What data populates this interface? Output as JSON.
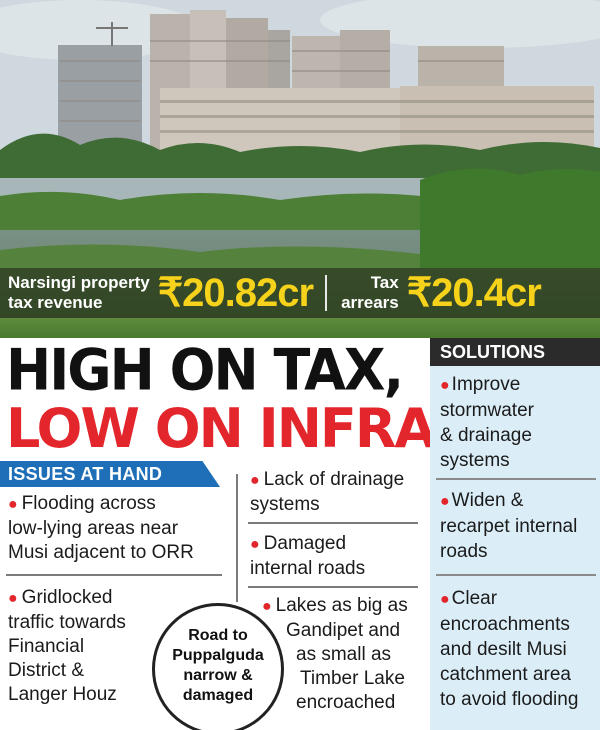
{
  "stats": {
    "revenue_label_line1": "Narsingi property",
    "revenue_label_line2": "tax revenue",
    "revenue_value": "₹20.82cr",
    "arrears_label_line1": "Tax",
    "arrears_label_line2": "arrears",
    "arrears_value": "₹20.4cr",
    "value_color": "#f6d21a"
  },
  "headline": {
    "line1": "HIGH ON TAX,",
    "line2": "LOW ON INFRA",
    "line1_color": "#111111",
    "line2_color": "#e3262b"
  },
  "issues": {
    "header": "ISSUES AT HAND",
    "header_color": "#1e6fb7",
    "items": [
      {
        "lines": [
          "Flooding across",
          "low-lying areas near",
          "Musi adjacent to ORR"
        ]
      },
      {
        "lines": [
          "Gridlocked",
          "traffic towards",
          "Financial",
          "District &",
          "Langer Houz"
        ]
      },
      {
        "lines": [
          "Lack of drainage",
          "systems"
        ]
      },
      {
        "lines": [
          "Damaged",
          "internal roads"
        ]
      },
      {
        "lines": [
          "Lakes as big as",
          "Gandipet and",
          "as small as",
          "Timber Lake",
          "encroached"
        ]
      }
    ],
    "callout": {
      "lines": [
        "Road to",
        "Puppalguda",
        "narrow &",
        "damaged"
      ]
    }
  },
  "solutions": {
    "header": "SOLUTIONS",
    "panel_color": "#dbeef8",
    "items": [
      {
        "lines": [
          "Improve",
          "stormwater",
          "& drainage",
          "systems"
        ]
      },
      {
        "lines": [
          "Widen &",
          "recarpet internal",
          "roads"
        ]
      },
      {
        "lines": [
          "Clear",
          "encroachments",
          "and desilt Musi",
          "catchment area",
          "to avoid flooding"
        ]
      }
    ]
  },
  "bullet_color": "#e3262b"
}
